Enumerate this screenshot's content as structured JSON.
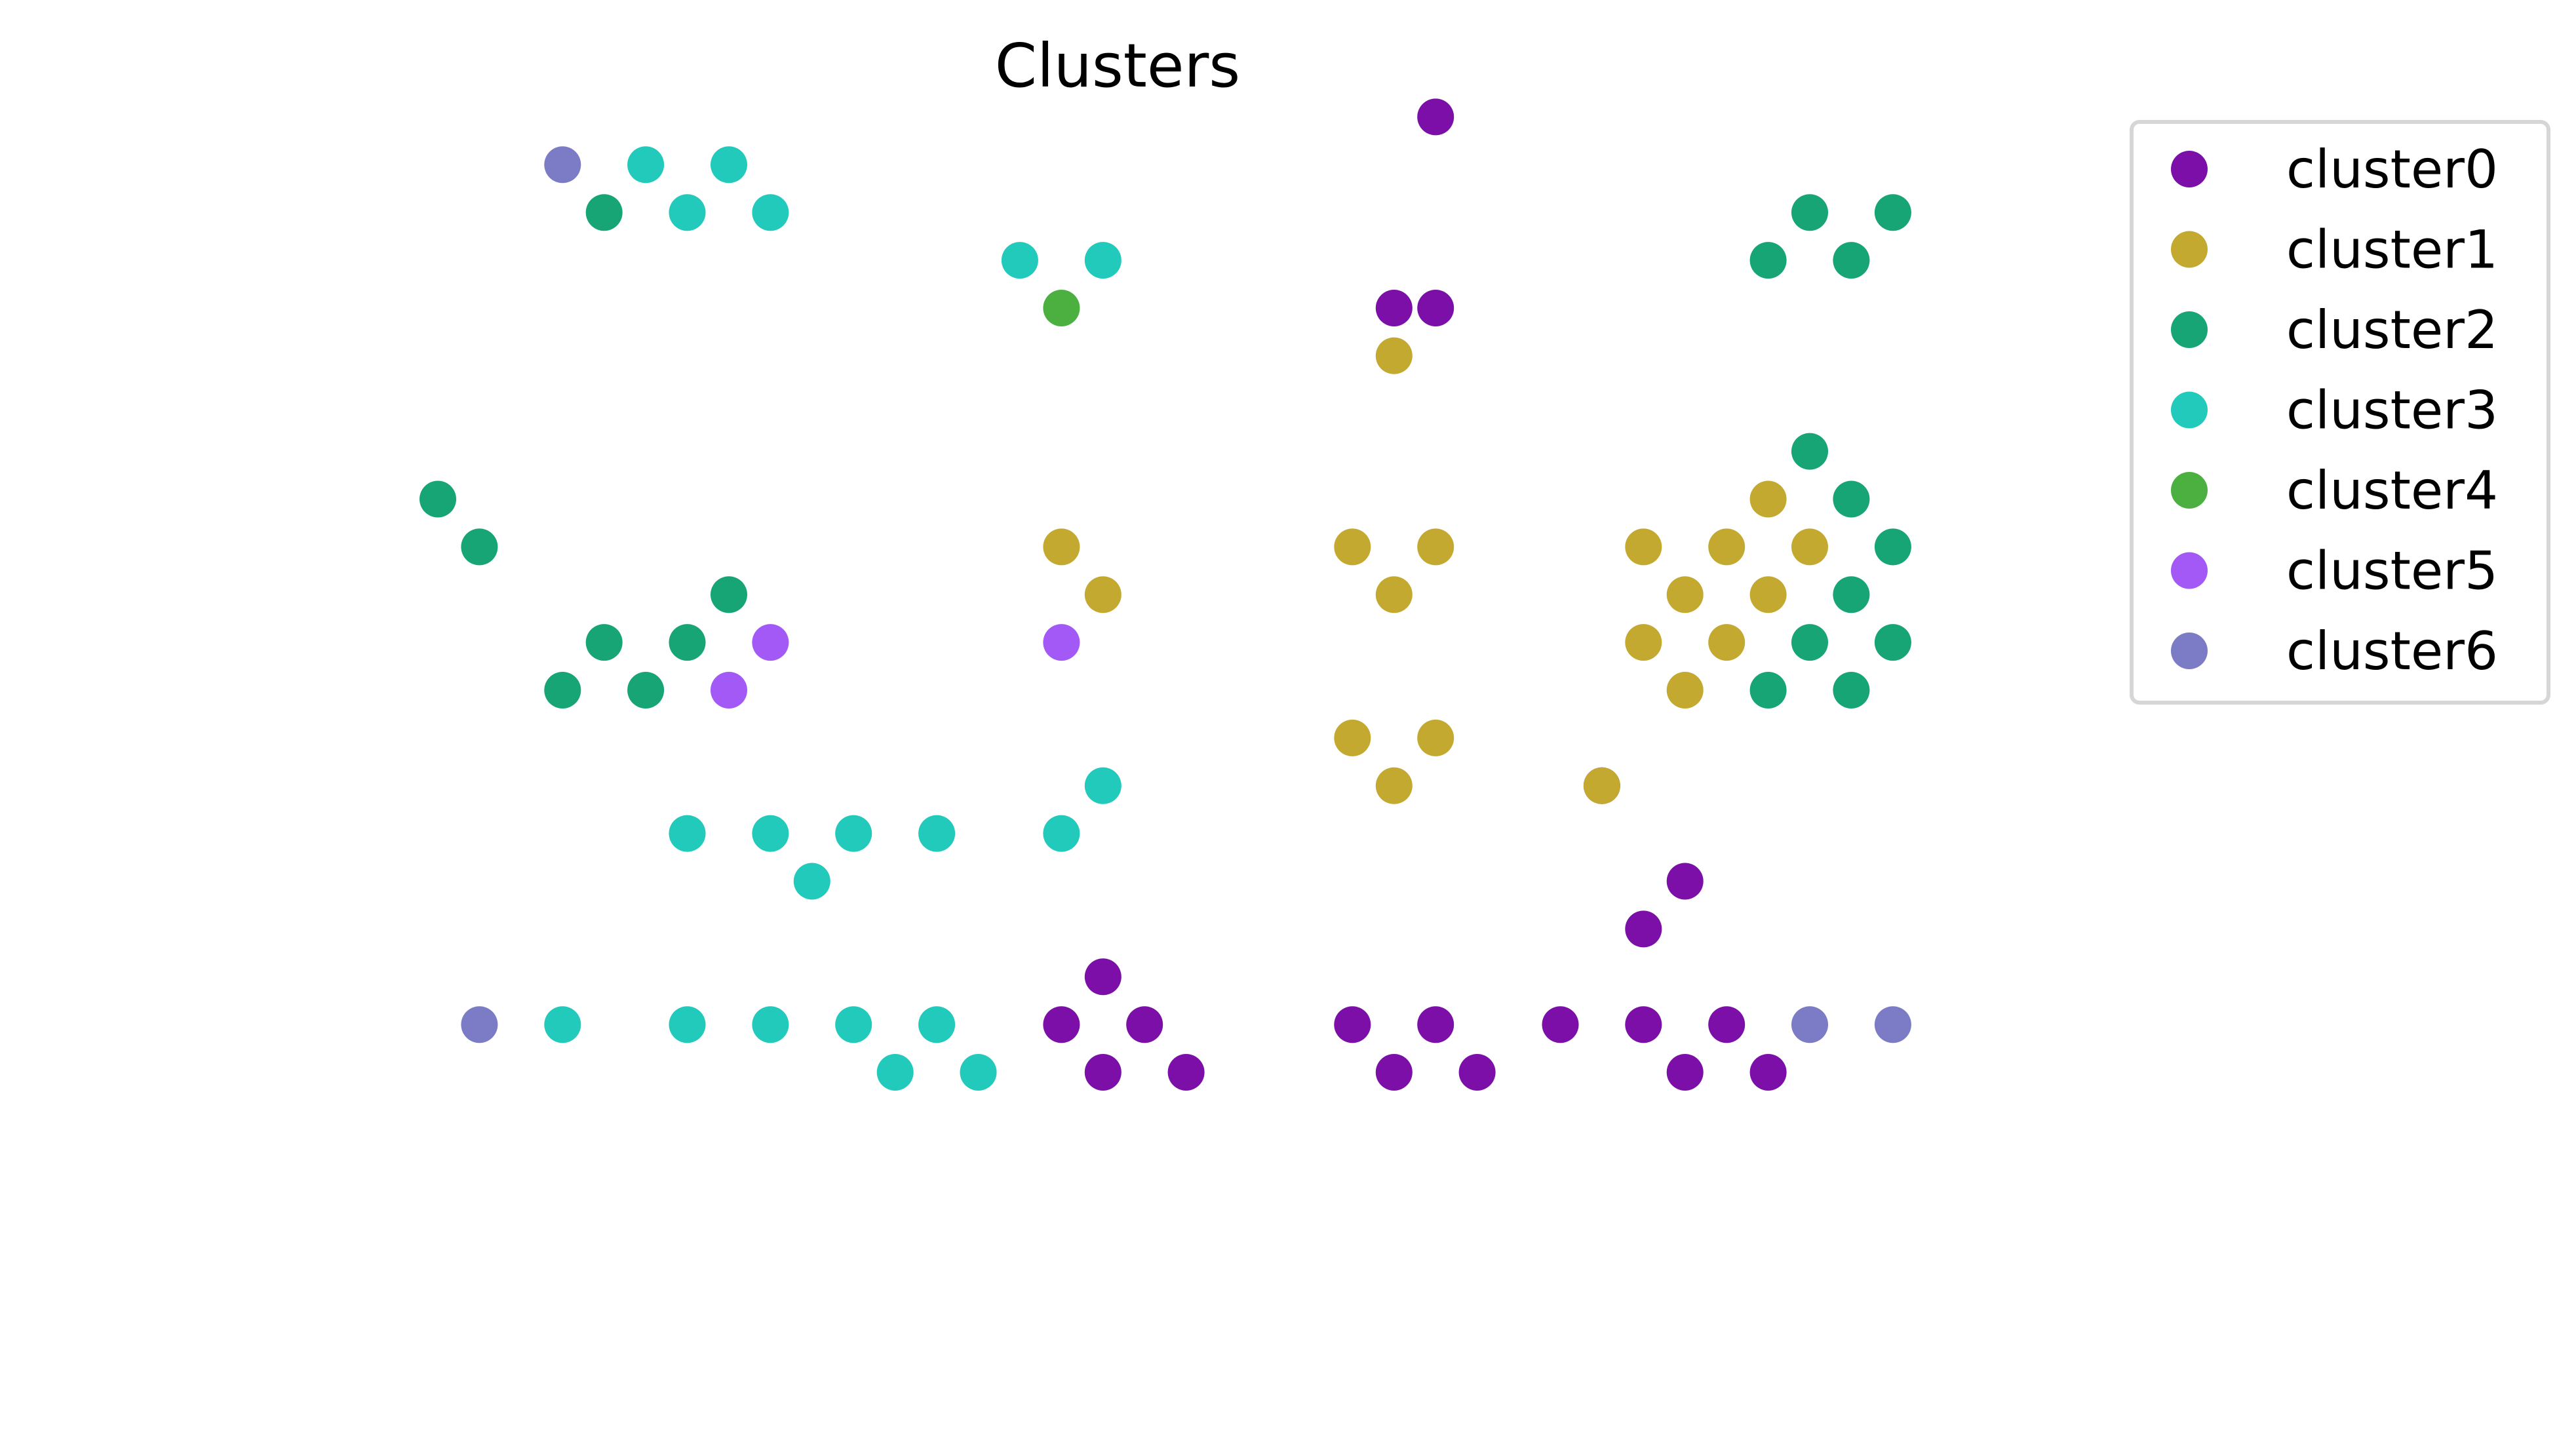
{
  "chart_data": {
    "type": "scatter",
    "title": "Clusters",
    "xlabel": "",
    "ylabel": "",
    "axes_visible": false,
    "grid": false,
    "xlim": [
      -0.5,
      39.5
    ],
    "ylim": [
      -2.5,
      22.5
    ],
    "legend": {
      "placement": "upper-right-outside"
    },
    "series": [
      {
        "name": "cluster0",
        "color": "#7b0fa8",
        "points": [
          [
            27,
            22
          ],
          [
            26,
            18
          ],
          [
            27,
            18
          ],
          [
            31,
            8
          ],
          [
            33,
            6
          ],
          [
            32,
            5
          ],
          [
            19,
            4
          ],
          [
            18,
            3
          ],
          [
            20,
            3
          ],
          [
            19,
            2
          ],
          [
            21,
            2
          ],
          [
            25,
            3
          ],
          [
            27,
            3
          ],
          [
            26,
            2
          ],
          [
            28,
            2
          ],
          [
            30,
            3
          ],
          [
            32,
            3
          ],
          [
            34,
            3
          ],
          [
            33,
            2
          ],
          [
            35,
            2
          ]
        ]
      },
      {
        "name": "cluster1",
        "color": "#c4a931",
        "points": [
          [
            26,
            17
          ],
          [
            35,
            14
          ],
          [
            18,
            13
          ],
          [
            19,
            12
          ],
          [
            25,
            13
          ],
          [
            27,
            13
          ],
          [
            26,
            12
          ],
          [
            32,
            13
          ],
          [
            34,
            13
          ],
          [
            36,
            13
          ],
          [
            33,
            12
          ],
          [
            35,
            12
          ],
          [
            32,
            11
          ],
          [
            34,
            11
          ],
          [
            33,
            10
          ],
          [
            25,
            9
          ],
          [
            27,
            9
          ],
          [
            26,
            8
          ],
          [
            31,
            8
          ]
        ]
      },
      {
        "name": "cluster2",
        "color": "#17a575",
        "points": [
          [
            7,
            20
          ],
          [
            36,
            20
          ],
          [
            38,
            20
          ],
          [
            35,
            19
          ],
          [
            37,
            19
          ],
          [
            36,
            15
          ],
          [
            3,
            14
          ],
          [
            37,
            14
          ],
          [
            4,
            13
          ],
          [
            38,
            13
          ],
          [
            37,
            12
          ],
          [
            10,
            12
          ],
          [
            7,
            11
          ],
          [
            9,
            11
          ],
          [
            36,
            11
          ],
          [
            38,
            11
          ],
          [
            6,
            10
          ],
          [
            8,
            10
          ],
          [
            35,
            10
          ],
          [
            37,
            10
          ]
        ]
      },
      {
        "name": "cluster3",
        "color": "#21cabb",
        "points": [
          [
            8,
            21
          ],
          [
            10,
            21
          ],
          [
            9,
            20
          ],
          [
            11,
            20
          ],
          [
            17,
            19
          ],
          [
            19,
            19
          ],
          [
            19,
            8
          ],
          [
            18,
            7
          ],
          [
            9,
            7
          ],
          [
            11,
            7
          ],
          [
            13,
            7
          ],
          [
            15,
            7
          ],
          [
            12,
            6
          ],
          [
            6,
            3
          ],
          [
            9,
            3
          ],
          [
            11,
            3
          ],
          [
            13,
            3
          ],
          [
            15,
            3
          ],
          [
            14,
            2
          ],
          [
            16,
            2
          ]
        ]
      },
      {
        "name": "cluster4",
        "color": "#4cb040",
        "points": [
          [
            18,
            18
          ]
        ]
      },
      {
        "name": "cluster5",
        "color": "#a359f5",
        "points": [
          [
            11,
            11
          ],
          [
            18,
            11
          ],
          [
            10,
            10
          ]
        ]
      },
      {
        "name": "cluster6",
        "color": "#7b7bc6",
        "points": [
          [
            6,
            21
          ],
          [
            4,
            3
          ],
          [
            36,
            3
          ],
          [
            38,
            3
          ]
        ]
      }
    ]
  }
}
